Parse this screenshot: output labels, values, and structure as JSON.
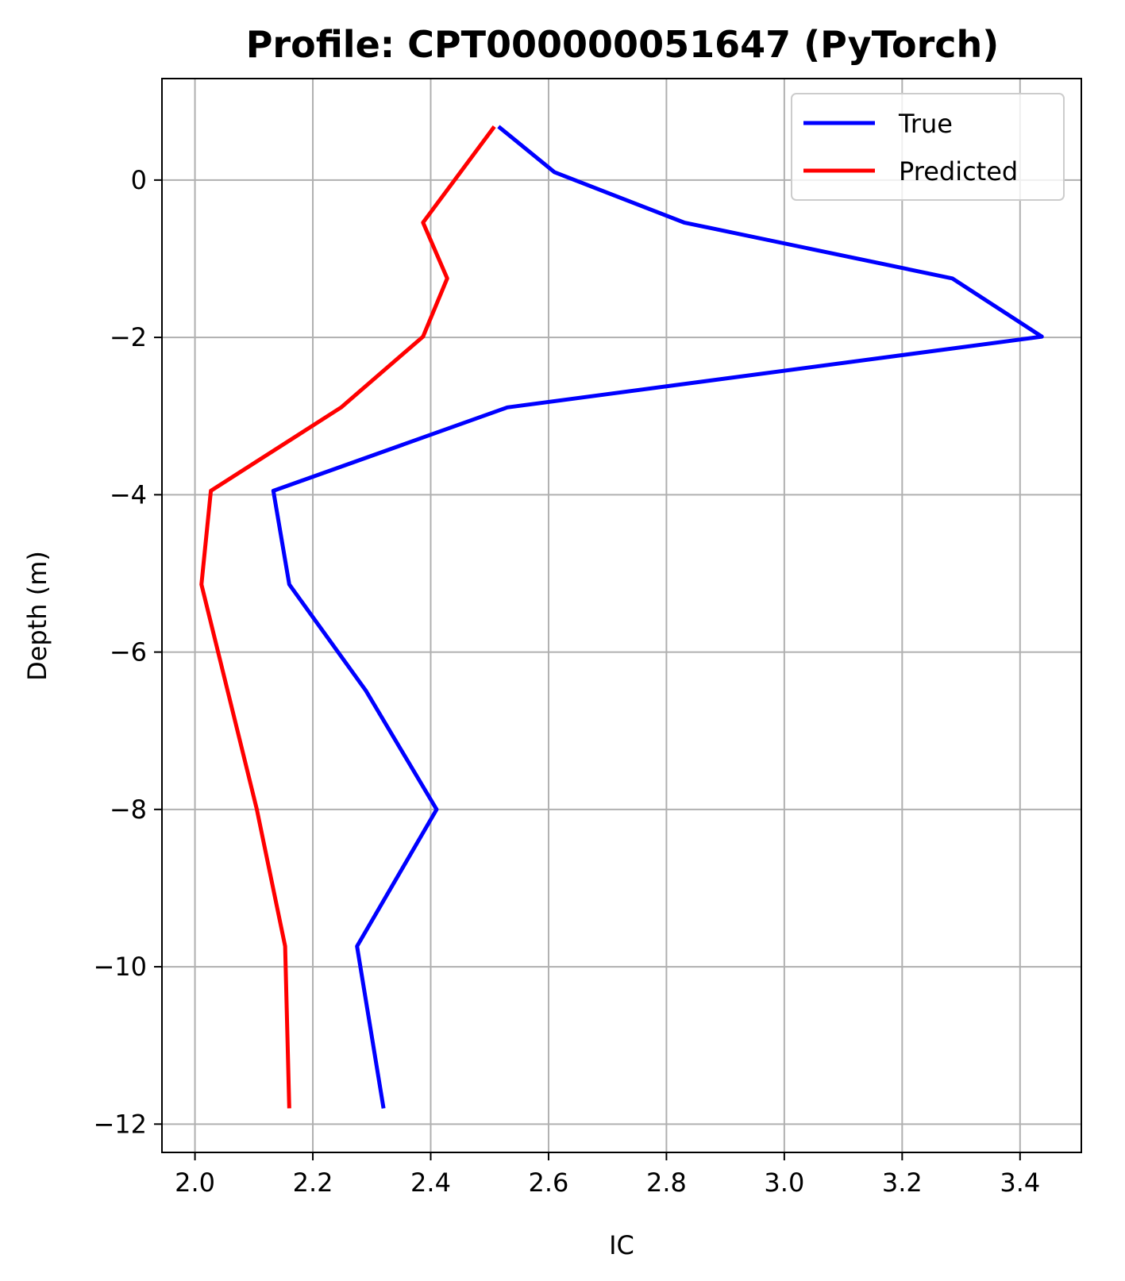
{
  "chart_data": {
    "type": "line",
    "title": "Profile: CPT000000051647 (PyTorch)",
    "xlabel": "IC",
    "ylabel": "Depth (m)",
    "xlim": [
      1.944,
      3.504
    ],
    "ylim": [
      -12.36,
      1.29
    ],
    "xticks": [
      2.0,
      2.2,
      2.4,
      2.6,
      2.8,
      3.0,
      3.2,
      3.4
    ],
    "xtick_labels": [
      "2.0",
      "2.2",
      "2.4",
      "2.6",
      "2.8",
      "3.0",
      "3.2",
      "3.4"
    ],
    "yticks": [
      0,
      -2,
      -4,
      -6,
      -8,
      -10,
      -12
    ],
    "ytick_labels": [
      "0",
      "−2",
      "−4",
      "−6",
      "−8",
      "−10",
      "−12"
    ],
    "grid": true,
    "legend_position": "top-right",
    "series": [
      {
        "name": "True",
        "color": "#0000ff",
        "points": [
          {
            "x": 2.515,
            "y": 0.68
          },
          {
            "x": 2.61,
            "y": 0.1
          },
          {
            "x": 2.83,
            "y": -0.54
          },
          {
            "x": 3.285,
            "y": -1.25
          },
          {
            "x": 3.437,
            "y": -1.99
          },
          {
            "x": 2.53,
            "y": -2.89
          },
          {
            "x": 2.133,
            "y": -3.95
          },
          {
            "x": 2.16,
            "y": -5.14
          },
          {
            "x": 2.29,
            "y": -6.49
          },
          {
            "x": 2.41,
            "y": -8.0
          },
          {
            "x": 2.275,
            "y": -9.74
          },
          {
            "x": 2.32,
            "y": -11.8
          }
        ]
      },
      {
        "name": "Predicted",
        "color": "#ff0000",
        "points": [
          {
            "x": 2.508,
            "y": 0.68
          },
          {
            "x": 2.387,
            "y": -0.54
          },
          {
            "x": 2.428,
            "y": -1.25
          },
          {
            "x": 2.387,
            "y": -1.99
          },
          {
            "x": 2.248,
            "y": -2.89
          },
          {
            "x": 2.027,
            "y": -3.95
          },
          {
            "x": 2.011,
            "y": -5.14
          },
          {
            "x": 2.105,
            "y": -8.0
          },
          {
            "x": 2.153,
            "y": -9.74
          },
          {
            "x": 2.16,
            "y": -11.8
          }
        ]
      }
    ]
  }
}
